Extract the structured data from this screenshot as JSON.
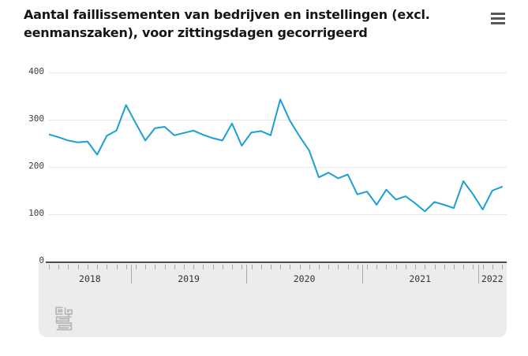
{
  "header": {
    "title": "Aantal faillissementen van bedrijven en instellingen (excl. eenmanszaken), voor zittingsdagen gecorrigeerd",
    "menu_icon": "hamburger-icon"
  },
  "colors": {
    "series": "#1aa0d4",
    "gridline": "#e6e6e6",
    "axis_line": "#4c4c4c",
    "panel_bg": "#ececec",
    "tick": "#a8a8a8",
    "label": "#3c3c3c",
    "logo": "#b4b4b4"
  },
  "chart_data": {
    "type": "line",
    "title": "Aantal faillissementen van bedrijven en instellingen (excl. eenmanszaken), voor zittingsdagen gecorrigeerd",
    "x": [
      "2018-04",
      "2018-05",
      "2018-06",
      "2018-07",
      "2018-08",
      "2018-09",
      "2018-10",
      "2018-11",
      "2018-12",
      "2019-01",
      "2019-02",
      "2019-03",
      "2019-04",
      "2019-05",
      "2019-06",
      "2019-07",
      "2019-08",
      "2019-09",
      "2019-10",
      "2019-11",
      "2019-12",
      "2020-01",
      "2020-02",
      "2020-03",
      "2020-04",
      "2020-05",
      "2020-06",
      "2020-07",
      "2020-08",
      "2020-09",
      "2020-10",
      "2020-11",
      "2020-12",
      "2021-01",
      "2021-02",
      "2021-03",
      "2021-04",
      "2021-05",
      "2021-06",
      "2021-07",
      "2021-08",
      "2021-09",
      "2021-10",
      "2021-11",
      "2021-12",
      "2022-01",
      "2022-02",
      "2022-03"
    ],
    "values": [
      269,
      263,
      256,
      252,
      254,
      226,
      266,
      277,
      331,
      293,
      256,
      282,
      285,
      267,
      272,
      277,
      268,
      261,
      256,
      292,
      245,
      273,
      276,
      267,
      343,
      298,
      265,
      235,
      178,
      188,
      176,
      184,
      142,
      148,
      120,
      152,
      131,
      138,
      123,
      106,
      126,
      120,
      113,
      170,
      142,
      110,
      150,
      158
    ],
    "xlabel": "",
    "ylabel": "",
    "ylim": [
      0,
      400
    ],
    "yticks": [
      0,
      100,
      200,
      300,
      400
    ],
    "xticks_years": [
      "2018",
      "2019",
      "2020",
      "2021",
      "2022"
    ],
    "grid": "horizontal",
    "legend": "none"
  },
  "footer": {
    "logo": "cbs-logo"
  }
}
